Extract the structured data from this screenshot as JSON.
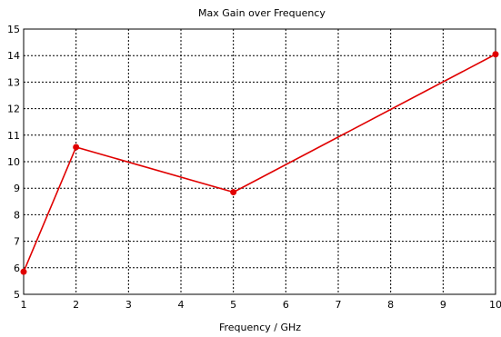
{
  "chart_data": {
    "type": "line",
    "title": "Max Gain over Frequency",
    "xlabel": "Frequency / GHz",
    "ylabel": "",
    "xlim": [
      1,
      10
    ],
    "ylim": [
      5,
      15
    ],
    "xticks": [
      1,
      2,
      3,
      4,
      5,
      6,
      7,
      8,
      9,
      10
    ],
    "yticks": [
      5,
      6,
      7,
      8,
      9,
      10,
      11,
      12,
      13,
      14,
      15
    ],
    "grid": true,
    "series": [
      {
        "color": "#e00000",
        "x": [
          1,
          2,
          5,
          10
        ],
        "y": [
          5.85,
          10.55,
          8.85,
          14.05
        ]
      }
    ]
  }
}
